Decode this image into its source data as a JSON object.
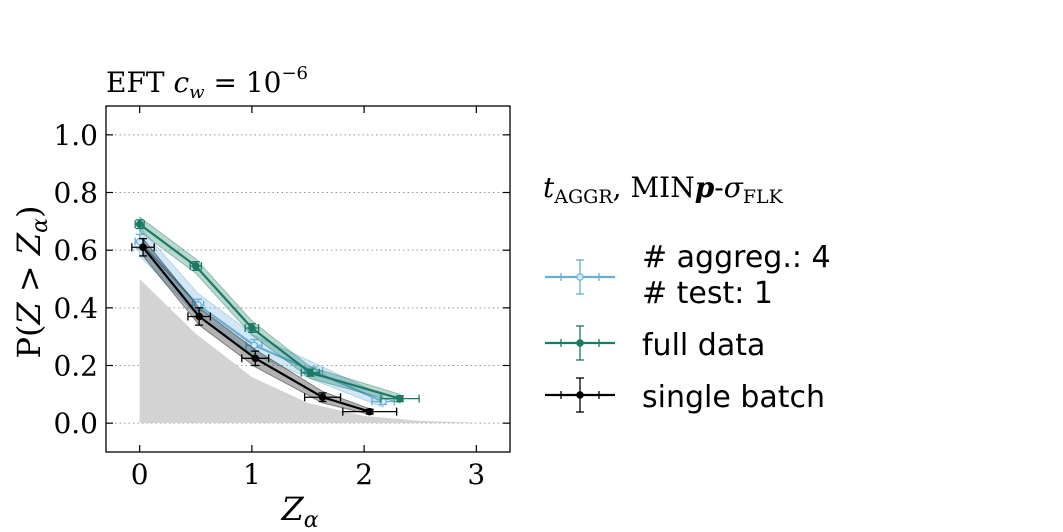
{
  "chart_data": {
    "type": "line",
    "title": "EFT c_w = 10^-6",
    "title_parts": {
      "text": "EFT ",
      "var": "c",
      "sub": "w",
      "eq": " = 10",
      "sup": "−6"
    },
    "xlabel": {
      "var": "Z",
      "sub": "α"
    },
    "ylabel": {
      "text": "P(",
      "var1": "Z",
      "op": " > ",
      "var2": "Z",
      "sub": "α",
      "close": ")"
    },
    "xlim": [
      -0.3,
      3.3
    ],
    "ylim": [
      -0.1,
      1.1
    ],
    "x_ticks": [
      0,
      1,
      2,
      3
    ],
    "x_tick_labels": [
      "0",
      "1",
      "2",
      "3"
    ],
    "y_ticks": [
      0.0,
      0.2,
      0.4,
      0.6,
      0.8,
      1.0
    ],
    "y_tick_labels": [
      "0.0",
      "0.2",
      "0.4",
      "0.6",
      "0.8",
      "1.0"
    ],
    "grid": "horizontal dotted",
    "legend_position": "right, outside",
    "legend_title": {
      "var": "t",
      "sub": "AGGR",
      "mid": ", MIN",
      "bold": "p",
      "dash": "-",
      "sigma": "σ",
      "sub2": "FLK"
    },
    "reference_band": {
      "name": "reference",
      "color": "#d3d3d3",
      "x": [
        0.0,
        0.5,
        1.0,
        1.5,
        2.0,
        2.5,
        3.0
      ],
      "y": [
        0.5,
        0.31,
        0.16,
        0.07,
        0.025,
        0.008,
        0.002
      ]
    },
    "series": [
      {
        "name": "# aggreg.: 4\n# test: 1",
        "legend_lines": [
          "# aggreg.: 4",
          "# test: 1"
        ],
        "color": "#6aaed6",
        "x": [
          0.0,
          0.52,
          1.02,
          1.55,
          2.17
        ],
        "y": [
          0.63,
          0.41,
          0.27,
          0.18,
          0.075
        ],
        "xerr": [
          0.04,
          0.05,
          0.07,
          0.08,
          0.1
        ],
        "yerr": [
          0.025,
          0.02,
          0.02,
          0.015,
          0.01
        ],
        "band": [
          0.05,
          0.04,
          0.035,
          0.03,
          0.02
        ]
      },
      {
        "name": "full data",
        "legend_lines": [
          "full data"
        ],
        "color": "#1b7a63",
        "x": [
          0.0,
          0.5,
          1.0,
          1.52,
          2.32
        ],
        "y": [
          0.69,
          0.545,
          0.33,
          0.175,
          0.085
        ],
        "xerr": [
          0.04,
          0.05,
          0.06,
          0.08,
          0.17
        ],
        "yerr": [
          0.015,
          0.015,
          0.015,
          0.012,
          0.01
        ],
        "band": [
          0.025,
          0.025,
          0.025,
          0.02,
          0.015
        ]
      },
      {
        "name": "single batch",
        "legend_lines": [
          "single batch"
        ],
        "color": "#000000",
        "x": [
          0.03,
          0.53,
          1.03,
          1.63,
          2.05
        ],
        "y": [
          0.61,
          0.37,
          0.225,
          0.09,
          0.04
        ],
        "xerr": [
          0.1,
          0.1,
          0.12,
          0.16,
          0.24
        ],
        "yerr": [
          0.03,
          0.03,
          0.025,
          0.015,
          0.008
        ],
        "band": [
          0.03,
          0.03,
          0.03,
          0.02,
          0.01
        ]
      }
    ]
  }
}
